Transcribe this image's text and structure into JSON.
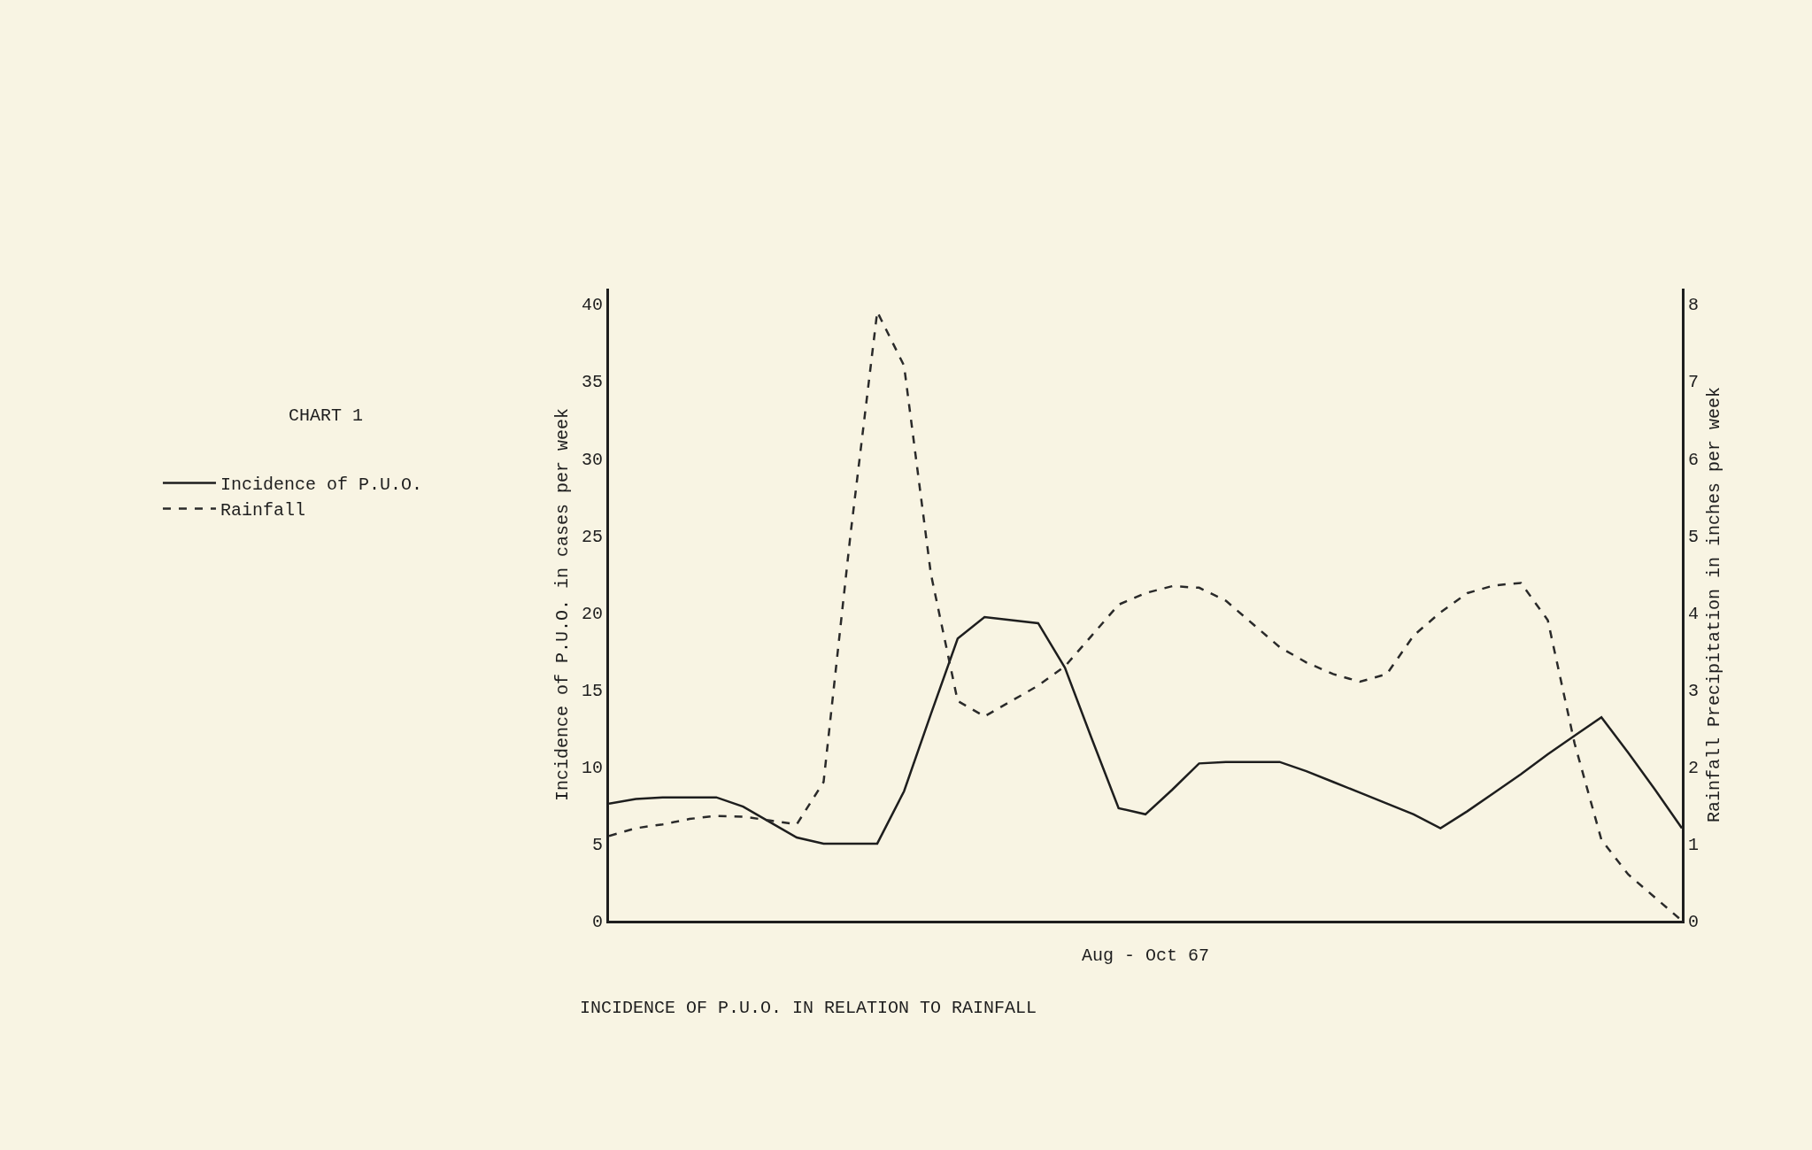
{
  "chart_data": {
    "type": "line",
    "title": "INCIDENCE OF P.U.O. IN RELATION TO RAINFALL",
    "subtitle": "CHART 1",
    "xlabel": "Aug - Oct 67",
    "ylabel": "Incidence of P.U.O. in cases per week",
    "y2label": "Rainfall Precipitation in inches per week",
    "categories": [
      null,
      null,
      null,
      null,
      null,
      null,
      null,
      null,
      null,
      null,
      null,
      null,
      null,
      null,
      null,
      null,
      null,
      null,
      null,
      null,
      null,
      null,
      null,
      null,
      null,
      null,
      null,
      null,
      null,
      null,
      null,
      null,
      null,
      null,
      null,
      null,
      null,
      null,
      null,
      null,
      null
    ],
    "series": [
      {
        "name": "Incidence of P.U.O.",
        "color": "#1e1e1e",
        "line_style": "solid",
        "values": [
          7.6,
          7.9,
          8,
          8,
          8,
          7.4,
          6.4,
          5.4,
          5,
          5,
          5,
          8.4,
          13.4,
          18.3,
          19.7,
          19.5,
          19.3,
          16.4,
          11.8,
          7.3,
          6.9,
          8.5,
          10.2,
          10.3,
          10.3,
          10.3,
          9.7,
          9.0,
          8.3,
          7.6,
          6.9,
          6.0,
          7.1,
          8.3,
          9.5,
          10.8,
          12.0,
          13.2,
          10.9,
          8.5,
          6.0
        ]
      },
      {
        "name": "Rainfall",
        "color": "#2a2a2a",
        "line_style": "dashed",
        "axis": "y2",
        "values": [
          1.1,
          1.2,
          1.25,
          1.32,
          1.36,
          1.35,
          1.3,
          1.25,
          1.8,
          5.0,
          7.9,
          7.2,
          4.5,
          2.85,
          2.65,
          2.85,
          3.05,
          3.3,
          3.7,
          4.1,
          4.25,
          4.34,
          4.32,
          4.15,
          3.85,
          3.55,
          3.35,
          3.2,
          3.1,
          3.2,
          3.7,
          4.0,
          4.25,
          4.35,
          4.38,
          3.9,
          2.3,
          1.05,
          0.6,
          0.3,
          0
        ]
      }
    ],
    "ylim": [
      0,
      41
    ],
    "yticks": [
      0,
      5,
      10,
      15,
      20,
      25,
      30,
      35,
      40
    ],
    "y2lim": [
      0,
      8.2
    ],
    "y2ticks": [
      0,
      1,
      2,
      3,
      4,
      5,
      6,
      7,
      8
    ],
    "grid": false,
    "legend": "left"
  }
}
